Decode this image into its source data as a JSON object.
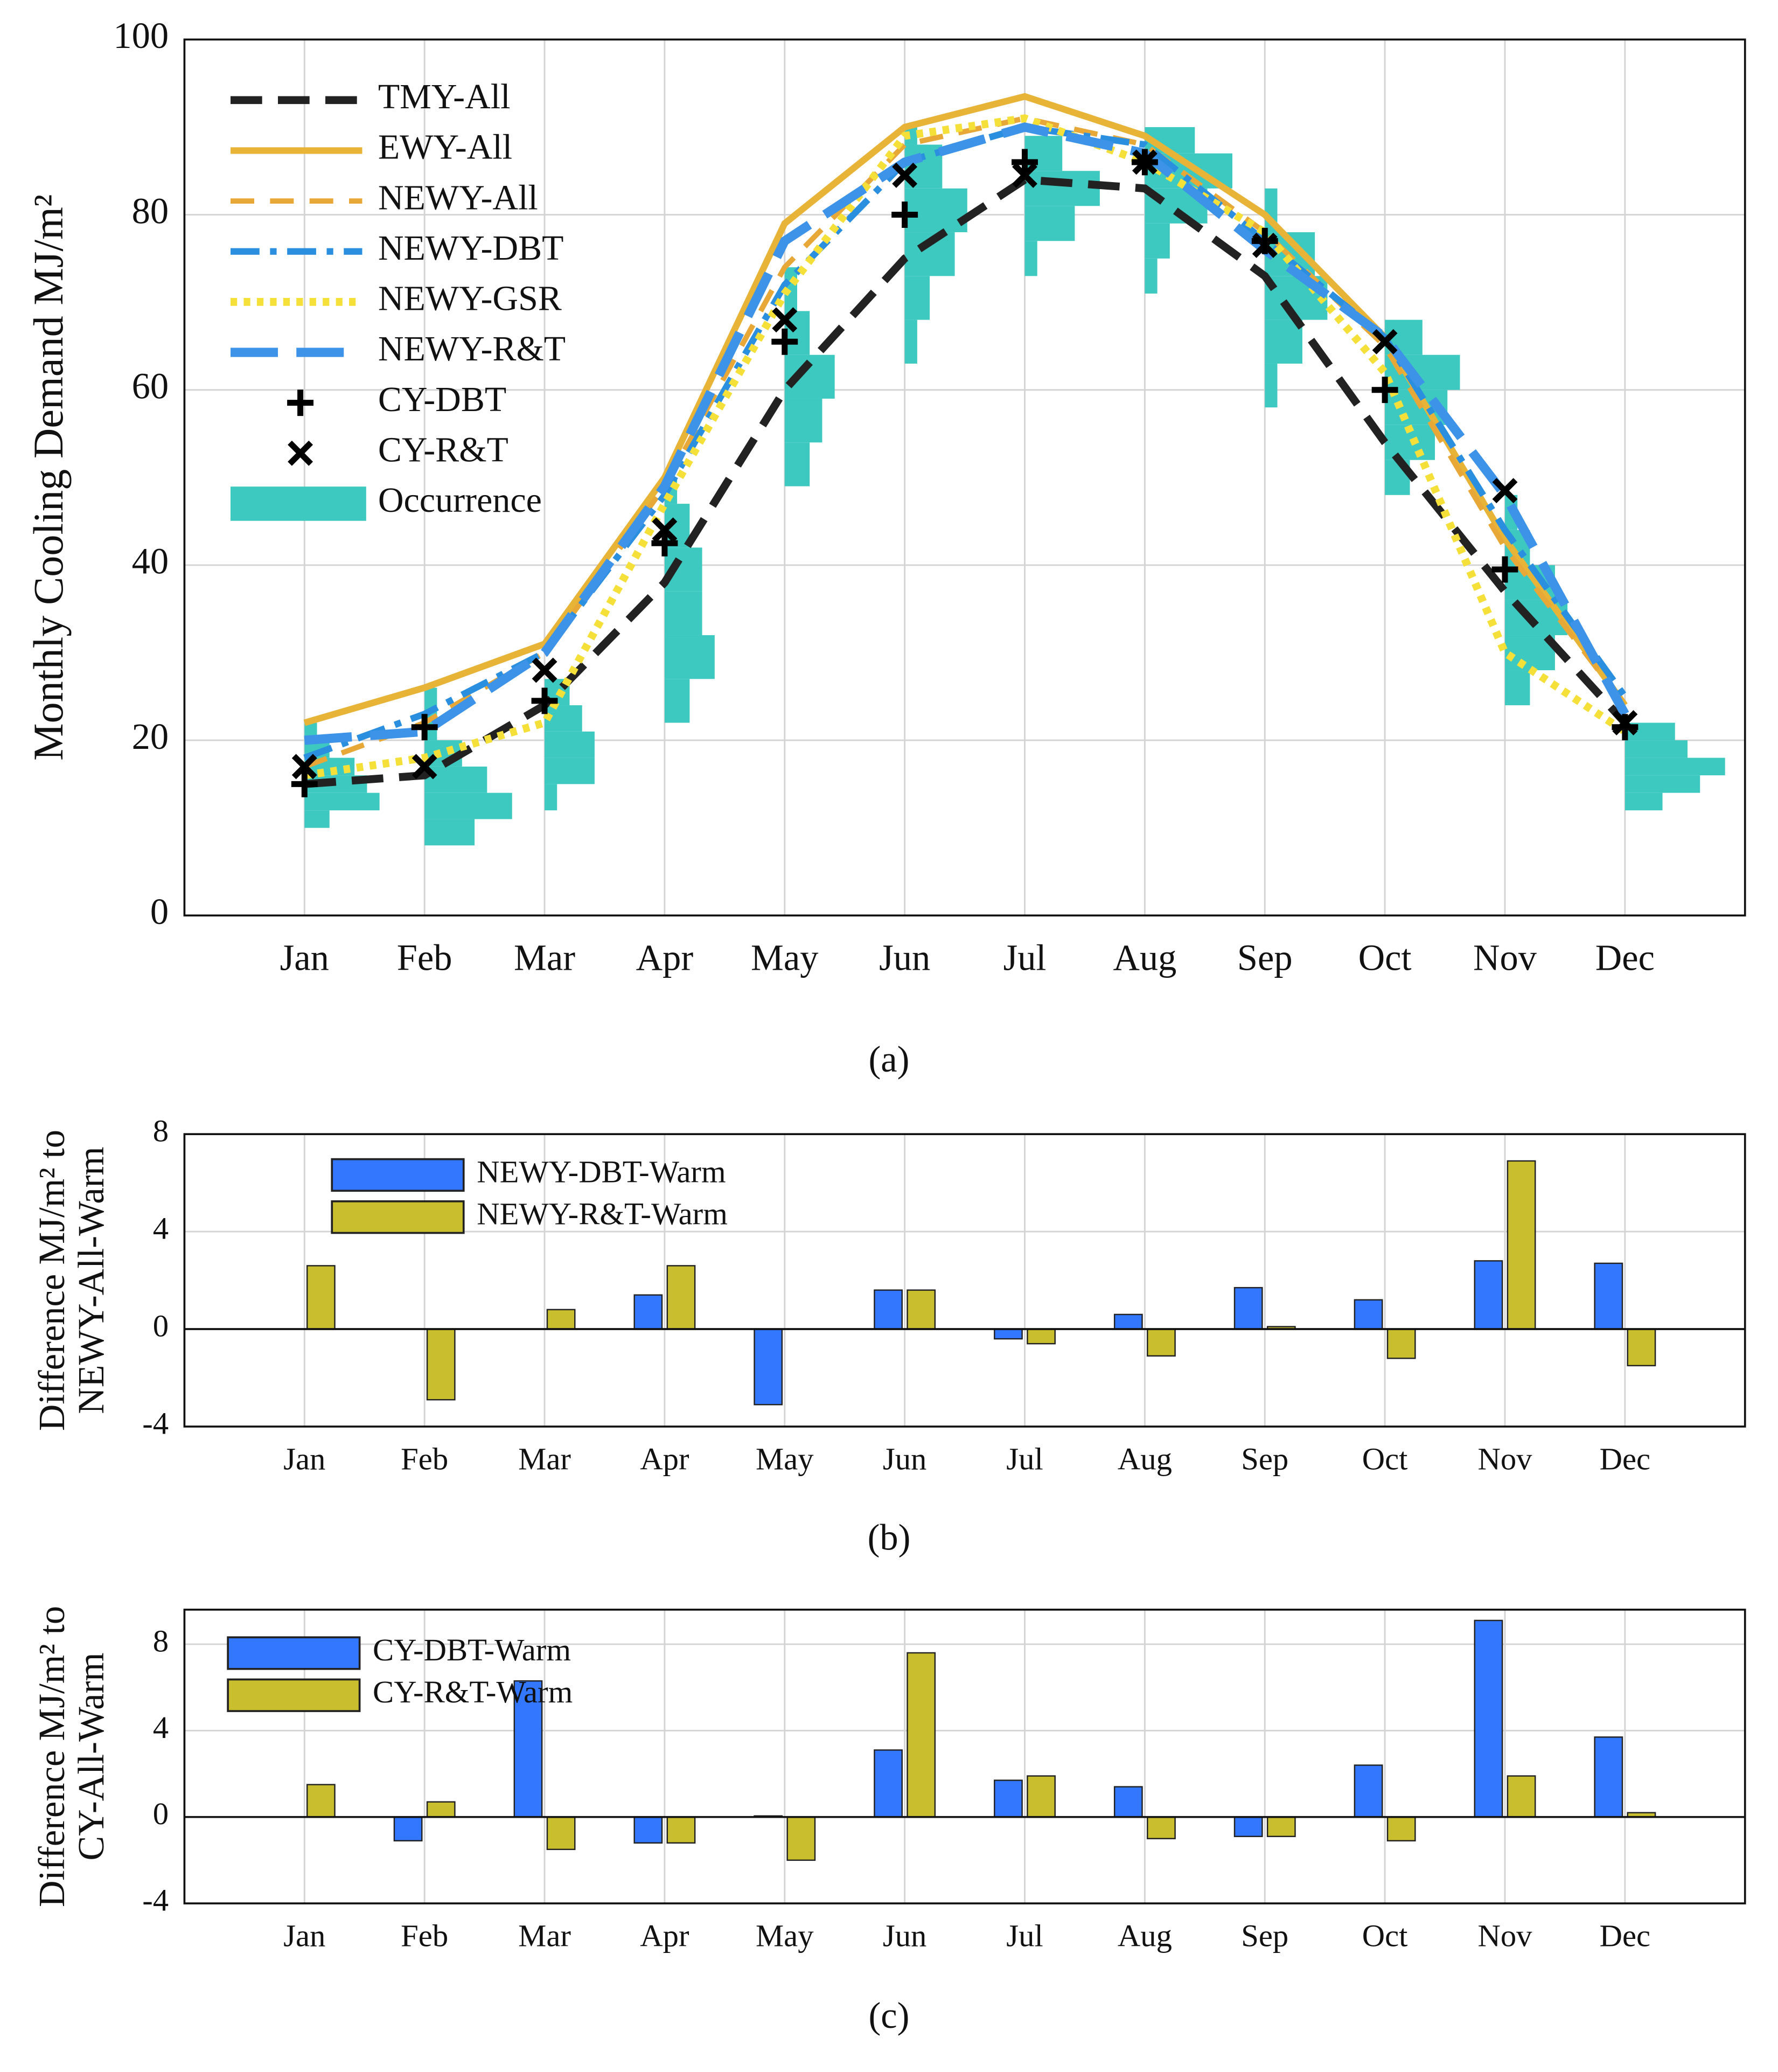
{
  "chart_data": [
    {
      "type": "line",
      "ylabel": [
        "Monthly Cooling Demand MJ/m²"
      ],
      "caption": "(a)",
      "categories": [
        "Jan",
        "Feb",
        "Mar",
        "Apr",
        "May",
        "Jun",
        "Jul",
        "Aug",
        "Sep",
        "Oct",
        "Nov",
        "Dec"
      ],
      "ylim": [
        0,
        100
      ],
      "yticks": [
        0,
        20,
        40,
        60,
        80,
        100
      ],
      "grid": true,
      "legend": "upper left",
      "occurrence": {
        "name": "Occurrence",
        "color": "#3ec9c0",
        "bins": [
          [
            10,
            12,
            14,
            16,
            18,
            20,
            22
          ],
          [
            8,
            11,
            14,
            17,
            20,
            23,
            26
          ],
          [
            12,
            15,
            18,
            21,
            24,
            27
          ],
          [
            22,
            27,
            32,
            37,
            42,
            47,
            50
          ],
          [
            49,
            54,
            59,
            64,
            69,
            74
          ],
          [
            63,
            68,
            73,
            78,
            83,
            88,
            90
          ],
          [
            73,
            77,
            81,
            85,
            89
          ],
          [
            71,
            75,
            79,
            83,
            87,
            90
          ],
          [
            58,
            63,
            68,
            73,
            78,
            83
          ],
          [
            48,
            52,
            56,
            60,
            64,
            68
          ],
          [
            24,
            28,
            32,
            36,
            40,
            44,
            48
          ],
          [
            12,
            14,
            16,
            18,
            20,
            22
          ]
        ],
        "counts": [
          [
            2,
            6,
            5,
            4,
            2,
            1
          ],
          [
            4,
            7,
            5,
            3,
            1,
            1
          ],
          [
            1,
            4,
            4,
            3,
            2
          ],
          [
            2,
            4,
            3,
            3,
            2,
            1
          ],
          [
            2,
            3,
            4,
            2,
            1
          ],
          [
            1,
            2,
            4,
            5,
            3,
            1
          ],
          [
            1,
            4,
            6,
            3
          ],
          [
            1,
            2,
            5,
            7,
            4
          ],
          [
            1,
            3,
            5,
            4,
            1
          ],
          [
            2,
            4,
            5,
            6,
            3
          ],
          [
            2,
            4,
            5,
            4,
            2,
            1
          ],
          [
            3,
            6,
            8,
            5,
            4
          ]
        ]
      },
      "series": [
        {
          "name": "TMY-All",
          "color": "#222222",
          "style": "dashed",
          "values": [
            15,
            16,
            24,
            38,
            60,
            75,
            84,
            83,
            73,
            54,
            37,
            22
          ]
        },
        {
          "name": "EWY-All",
          "color": "#e8b437",
          "style": "solid",
          "values": [
            22,
            26,
            31,
            50,
            79,
            90,
            93.5,
            89,
            80,
            66,
            43,
            24
          ]
        },
        {
          "name": "NEWY-All",
          "color": "#e8a838",
          "style": "dashed-thin",
          "values": [
            17,
            22,
            30,
            49,
            74,
            88,
            91,
            88,
            78,
            65,
            42,
            24
          ]
        },
        {
          "name": "NEWY-DBT",
          "color": "#2b8fe0",
          "style": "dashdot",
          "values": [
            18,
            23,
            30,
            48,
            72,
            86,
            90,
            88,
            77,
            66,
            44,
            25
          ]
        },
        {
          "name": "NEWY-GSR",
          "color": "#f5e03a",
          "style": "dotted",
          "values": [
            16,
            18,
            22,
            47,
            71,
            89,
            91,
            86,
            78,
            62,
            30,
            21
          ]
        },
        {
          "name": "NEWY-R&T",
          "color": "#3d93e8",
          "style": "longdash",
          "values": [
            20,
            21,
            30,
            49,
            77,
            86,
            90,
            87,
            76,
            66,
            48,
            23
          ]
        },
        {
          "name": "CY-DBT",
          "color": "#000000",
          "marker": "plus",
          "values": [
            15,
            21.5,
            24.5,
            42.5,
            65.5,
            80,
            86,
            86,
            77,
            60,
            39.5,
            21.5
          ]
        },
        {
          "name": "CY-R&T",
          "color": "#000000",
          "marker": "x",
          "values": [
            17,
            17,
            28,
            44,
            68,
            84.5,
            84.5,
            86,
            76.5,
            65.5,
            48.5,
            22
          ]
        }
      ]
    },
    {
      "type": "bar",
      "ylabel": [
        "Difference MJ/m² to",
        "NEWY-All-Warm"
      ],
      "caption": "(b)",
      "categories": [
        "Jan",
        "Feb",
        "Mar",
        "Apr",
        "May",
        "Jun",
        "Jul",
        "Aug",
        "Sep",
        "Oct",
        "Nov",
        "Dec"
      ],
      "ylim": [
        -4,
        8
      ],
      "yticks": [
        -4,
        0,
        4,
        8
      ],
      "grid": true,
      "legend": "upper left",
      "series": [
        {
          "name": "NEWY-DBT-Warm",
          "color": "#3377ff",
          "values": [
            0,
            0,
            0,
            1.4,
            -3.1,
            1.6,
            -0.4,
            0.6,
            1.7,
            1.2,
            2.8,
            2.7
          ]
        },
        {
          "name": "NEWY-R&T-Warm",
          "color": "#c8be2e",
          "values": [
            2.6,
            -2.9,
            0.8,
            2.6,
            0,
            1.6,
            -0.6,
            -1.1,
            0.1,
            -1.2,
            6.9,
            -1.5
          ]
        }
      ]
    },
    {
      "type": "bar",
      "ylabel": [
        "Difference MJ/m² to",
        "CY-All-Warm"
      ],
      "caption": "(c)",
      "categories": [
        "Jan",
        "Feb",
        "Mar",
        "Apr",
        "May",
        "Jun",
        "Jul",
        "Aug",
        "Sep",
        "Oct",
        "Nov",
        "Dec"
      ],
      "ylim": [
        -4,
        9.6
      ],
      "yticks": [
        -4,
        0,
        4,
        8
      ],
      "grid": true,
      "legend": "upper left",
      "series": [
        {
          "name": "CY-DBT-Warm",
          "color": "#3377ff",
          "values": [
            0,
            -1.1,
            6.3,
            -1.2,
            0.05,
            3.1,
            1.7,
            1.4,
            -0.9,
            2.4,
            9.1,
            3.7
          ]
        },
        {
          "name": "CY-R&T-Warm",
          "color": "#c8be2e",
          "values": [
            1.5,
            0.7,
            -1.5,
            -1.2,
            -2.0,
            7.6,
            1.9,
            -1.0,
            -0.9,
            -1.1,
            1.9,
            0.2
          ]
        }
      ]
    }
  ]
}
